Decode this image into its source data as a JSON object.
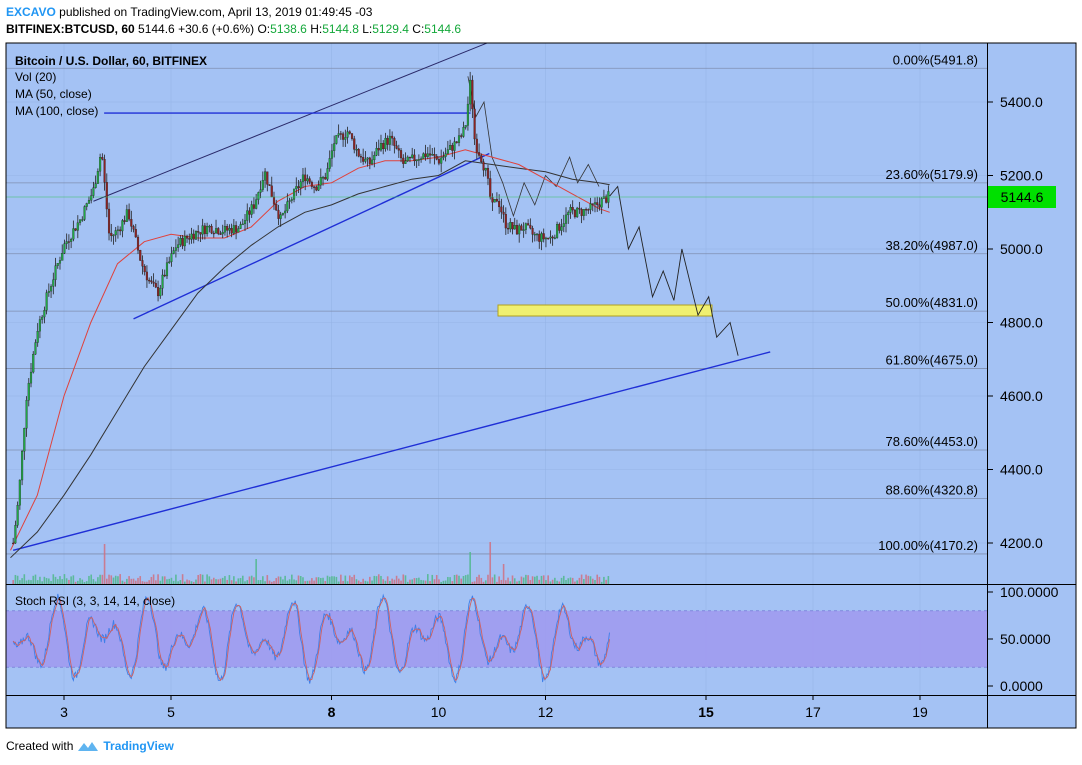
{
  "header": {
    "author": "EXCAVO",
    "published": "published on TradingView.com, April 13, 2019 01:49:45 -03",
    "symbol": "BITFINEX:BTCUSD, 60",
    "change": "5144.6  +30.6 (+0.6%)",
    "o_label": "O:",
    "o": "5138.6",
    "h_label": "H:",
    "h": "5144.8",
    "l_label": "L:",
    "l": "5129.4",
    "c_label": "C:",
    "c": "5144.6"
  },
  "legend": {
    "title": "Bitcoin / U.S. Dollar, 60, BITFINEX",
    "vol": "Vol (20)",
    "ma50": "MA (50, close)",
    "ma100": "MA (100, close)"
  },
  "footer": {
    "created": "Created with",
    "brand": "TradingView"
  },
  "colors": {
    "background": "#a4c2f4",
    "up": "#20a845",
    "down": "#8c2323",
    "ma50": "#e0413b",
    "ma100": "#333333",
    "trendline": "#1f2fd6",
    "stoch_band": "#a09bf0",
    "last_price": "#00e000"
  },
  "chart_data": {
    "type": "candlestick",
    "price_axis": {
      "range": [
        4080,
        5560
      ],
      "ticks": [
        "5400.0",
        "5200.0",
        "5000.0",
        "4800.0",
        "4600.0",
        "4400.0",
        "4200.0"
      ],
      "tick_values": [
        5400,
        5200,
        5000,
        4800,
        4600,
        4400,
        4200
      ]
    },
    "time_axis": {
      "ticks": [
        "3",
        "5",
        "8",
        "10",
        "12",
        "15",
        "17",
        "19"
      ],
      "tick_day_values": [
        3,
        5,
        8,
        10,
        12,
        15,
        17,
        19
      ],
      "bold_ticks": [
        "8",
        "15"
      ],
      "range_days": [
        2,
        20.3
      ]
    },
    "fibonacci": [
      {
        "label": "0.00%(5491.8)",
        "value": 5491.8
      },
      {
        "label": "23.60%(5179.9)",
        "value": 5179.9
      },
      {
        "label": "38.20%(4987.0)",
        "value": 4987.0
      },
      {
        "label": "50.00%(4831.0)",
        "value": 4831.0
      },
      {
        "label": "61.80%(4675.0)",
        "value": 4675.0
      },
      {
        "label": "78.60%(4453.0)",
        "value": 4453.0
      },
      {
        "label": "88.60%(4320.8)",
        "value": 4320.8
      },
      {
        "label": "100.00%(4170.2)",
        "value": 4170.2
      }
    ],
    "last_price": {
      "label": "5144.6",
      "value": 5144.6
    },
    "price_anchors": [
      [
        2.05,
        4200
      ],
      [
        2.15,
        4320
      ],
      [
        2.3,
        4600
      ],
      [
        2.5,
        4780
      ],
      [
        2.7,
        4880
      ],
      [
        3.0,
        5010
      ],
      [
        3.3,
        5080
      ],
      [
        3.55,
        5160
      ],
      [
        3.7,
        5270
      ],
      [
        3.85,
        5030
      ],
      [
        4.0,
        5050
      ],
      [
        4.2,
        5100
      ],
      [
        4.45,
        4960
      ],
      [
        4.6,
        4910
      ],
      [
        4.75,
        4880
      ],
      [
        4.9,
        4940
      ],
      [
        5.1,
        5010
      ],
      [
        5.4,
        5040
      ],
      [
        5.7,
        5060
      ],
      [
        6.0,
        5050
      ],
      [
        6.3,
        5060
      ],
      [
        6.55,
        5120
      ],
      [
        6.75,
        5210
      ],
      [
        6.9,
        5140
      ],
      [
        7.05,
        5080
      ],
      [
        7.3,
        5150
      ],
      [
        7.5,
        5200
      ],
      [
        7.7,
        5170
      ],
      [
        7.9,
        5200
      ],
      [
        8.05,
        5290
      ],
      [
        8.3,
        5320
      ],
      [
        8.5,
        5260
      ],
      [
        8.7,
        5230
      ],
      [
        8.9,
        5280
      ],
      [
        9.1,
        5300
      ],
      [
        9.35,
        5230
      ],
      [
        9.6,
        5250
      ],
      [
        9.8,
        5260
      ],
      [
        10.0,
        5240
      ],
      [
        10.2,
        5270
      ],
      [
        10.4,
        5300
      ],
      [
        10.5,
        5330
      ],
      [
        10.6,
        5460
      ],
      [
        10.68,
        5290
      ],
      [
        10.8,
        5250
      ],
      [
        10.9,
        5200
      ],
      [
        11.0,
        5110
      ],
      [
        11.1,
        5140
      ],
      [
        11.25,
        5070
      ],
      [
        11.45,
        5050
      ],
      [
        11.6,
        5060
      ],
      [
        11.75,
        5040
      ],
      [
        11.9,
        5030
      ],
      [
        12.1,
        5030
      ],
      [
        12.25,
        5060
      ],
      [
        12.45,
        5100
      ],
      [
        12.65,
        5100
      ],
      [
        12.85,
        5110
      ],
      [
        13.05,
        5130
      ],
      [
        13.2,
        5144.6
      ]
    ],
    "ma50_points": [
      [
        2.0,
        4180
      ],
      [
        2.5,
        4330
      ],
      [
        3.0,
        4600
      ],
      [
        3.5,
        4800
      ],
      [
        4.0,
        4960
      ],
      [
        4.5,
        5020
      ],
      [
        5.0,
        5040
      ],
      [
        5.5,
        5030
      ],
      [
        6.0,
        5030
      ],
      [
        6.5,
        5060
      ],
      [
        7.0,
        5130
      ],
      [
        7.5,
        5170
      ],
      [
        8.0,
        5180
      ],
      [
        8.5,
        5220
      ],
      [
        9.0,
        5240
      ],
      [
        9.5,
        5240
      ],
      [
        10.0,
        5250
      ],
      [
        10.5,
        5270
      ],
      [
        11.0,
        5250
      ],
      [
        11.5,
        5230
      ],
      [
        12.0,
        5190
      ],
      [
        12.5,
        5150
      ],
      [
        13.0,
        5110
      ],
      [
        13.2,
        5100
      ]
    ],
    "ma100_points": [
      [
        2.0,
        4160
      ],
      [
        2.5,
        4230
      ],
      [
        3.0,
        4330
      ],
      [
        3.5,
        4440
      ],
      [
        4.0,
        4560
      ],
      [
        4.5,
        4680
      ],
      [
        5.0,
        4780
      ],
      [
        5.5,
        4880
      ],
      [
        6.0,
        4950
      ],
      [
        6.5,
        5010
      ],
      [
        7.0,
        5060
      ],
      [
        7.5,
        5100
      ],
      [
        8.0,
        5120
      ],
      [
        8.5,
        5150
      ],
      [
        9.0,
        5170
      ],
      [
        9.5,
        5190
      ],
      [
        10.0,
        5200
      ],
      [
        10.5,
        5240
      ],
      [
        11.0,
        5230
      ],
      [
        11.5,
        5220
      ],
      [
        12.0,
        5210
      ],
      [
        12.5,
        5190
      ],
      [
        13.0,
        5180
      ],
      [
        13.2,
        5175
      ]
    ],
    "projection_points": [
      [
        13.2,
        5144
      ],
      [
        13.35,
        5170
      ],
      [
        13.55,
        5000
      ],
      [
        13.75,
        5060
      ],
      [
        14.0,
        4870
      ],
      [
        14.2,
        4940
      ],
      [
        14.4,
        4860
      ],
      [
        14.55,
        5000
      ],
      [
        14.85,
        4820
      ],
      [
        15.05,
        4870
      ],
      [
        15.2,
        4760
      ],
      [
        15.45,
        4800
      ],
      [
        15.6,
        4710
      ]
    ],
    "ghost_points": [
      [
        10.55,
        5470
      ],
      [
        10.7,
        5360
      ],
      [
        10.85,
        5400
      ],
      [
        11.0,
        5250
      ],
      [
        11.2,
        5180
      ],
      [
        11.4,
        5090
      ],
      [
        11.6,
        5180
      ],
      [
        11.8,
        5120
      ],
      [
        12.0,
        5200
      ],
      [
        12.2,
        5170
      ],
      [
        12.45,
        5250
      ],
      [
        12.6,
        5180
      ],
      [
        12.8,
        5230
      ],
      [
        13.0,
        5170
      ]
    ],
    "trendlines": [
      {
        "from": [
          4.3,
          4810
        ],
        "to": [
          10.95,
          5260
        ]
      },
      {
        "from": [
          3.55,
          5130
        ],
        "to": [
          10.9,
          5560
        ]
      },
      {
        "from": [
          3.75,
          5370
        ],
        "to": [
          10.6,
          5370
        ]
      },
      {
        "from": [
          2.05,
          4180
        ],
        "to": [
          16.2,
          4720
        ]
      }
    ],
    "zone": {
      "from": [
        11.0,
        4850
      ],
      "to": [
        15.05,
        4820
      ]
    },
    "volume_spikes": [
      [
        3.75,
        40
      ],
      [
        6.6,
        25
      ],
      [
        10.6,
        32
      ],
      [
        10.95,
        42
      ],
      [
        11.2,
        20
      ]
    ],
    "stoch_rsi": {
      "label": "Stoch RSI (3, 3, 14, 14, close)",
      "axis_ticks": [
        "100.0000",
        "50.0000",
        "0.0000"
      ],
      "tick_values": [
        100,
        50,
        0
      ],
      "band": [
        20,
        80
      ]
    }
  }
}
